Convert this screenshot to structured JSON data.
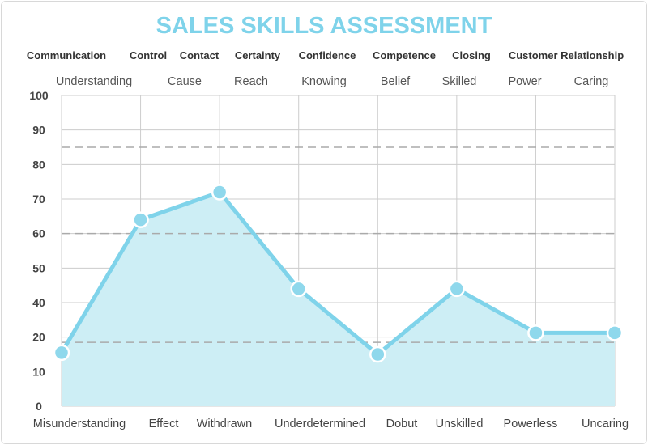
{
  "colors": {
    "accent": "#7fd3ea",
    "fill": "#cdeef5",
    "marker": "#8fd8ec",
    "grid": "#cccccc",
    "reference_line": "#aaaaaa"
  },
  "chart_data": {
    "type": "area",
    "title": "SALES SKILLS ASSESSMENT",
    "categories": [
      "Communication",
      "Control",
      "Contact",
      "Certainty",
      "Confidence",
      "Competence",
      "Closing",
      "Customer Relationship"
    ],
    "positive_labels": [
      "Understanding",
      "Cause",
      "Reach",
      "Knowing",
      "Belief",
      "Skilled",
      "Power",
      "Caring"
    ],
    "negative_labels": [
      "Misunderstanding",
      "Effect",
      "Withdrawn",
      "Underdetermined",
      "Dobut",
      "Unskilled",
      "Powerless",
      "Uncaring"
    ],
    "yticks": [
      "100",
      "90",
      "80",
      "70",
      "60",
      "50",
      "40",
      "20",
      "10",
      "0"
    ],
    "ylim": [
      0,
      100
    ],
    "y_tick_values": [
      100,
      90,
      80,
      70,
      60,
      50,
      40,
      20,
      10,
      0
    ],
    "series": [
      {
        "values": [
          15.5,
          64,
          72,
          44,
          15,
          44,
          22.5,
          22.5
        ]
      }
    ],
    "reference_levels": [
      85,
      60,
      18.5
    ],
    "grid": true
  }
}
